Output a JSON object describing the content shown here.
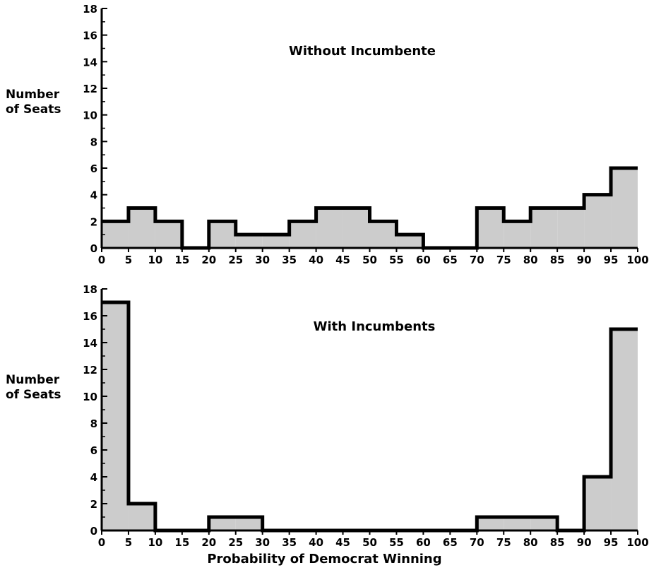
{
  "chart_data": [
    {
      "type": "bar",
      "title": "Without Incumbente",
      "ylabel": "Number of Seats",
      "xlabel": "",
      "x_tick_labels": [
        "0",
        "5",
        "10",
        "15",
        "20",
        "25",
        "30",
        "35",
        "40",
        "45",
        "50",
        "55",
        "60",
        "65",
        "70",
        "75",
        "80",
        "85",
        "90",
        "95",
        "100"
      ],
      "y_tick_labels": [
        "0",
        "2",
        "4",
        "6",
        "8",
        "10",
        "12",
        "14",
        "16",
        "18"
      ],
      "xlim": [
        0,
        100
      ],
      "ylim": [
        0,
        18
      ],
      "bin_width": 5,
      "categories": [
        "0-5",
        "5-10",
        "10-15",
        "15-20",
        "20-25",
        "25-30",
        "30-35",
        "35-40",
        "40-45",
        "45-50",
        "50-55",
        "55-60",
        "60-65",
        "65-70",
        "70-75",
        "75-80",
        "80-85",
        "85-90",
        "90-95",
        "95-100"
      ],
      "values": [
        2,
        3,
        2,
        0,
        2,
        1,
        1,
        2,
        3,
        3,
        2,
        1,
        0,
        0,
        3,
        2,
        3,
        3,
        4,
        6
      ],
      "fill": "#cccccc",
      "stroke": "#000000"
    },
    {
      "type": "bar",
      "title": "With Incumbents",
      "ylabel": "Number of Seats",
      "xlabel": "Probability of Democrat Winning",
      "x_tick_labels": [
        "0",
        "5",
        "10",
        "15",
        "20",
        "25",
        "30",
        "35",
        "40",
        "45",
        "50",
        "55",
        "60",
        "65",
        "70",
        "75",
        "80",
        "85",
        "90",
        "95",
        "100"
      ],
      "y_tick_labels": [
        "0",
        "2",
        "4",
        "6",
        "8",
        "10",
        "12",
        "14",
        "16",
        "18"
      ],
      "xlim": [
        0,
        100
      ],
      "ylim": [
        0,
        18
      ],
      "bin_width": 5,
      "categories": [
        "0-5",
        "5-10",
        "10-15",
        "15-20",
        "20-25",
        "25-30",
        "30-35",
        "35-40",
        "40-45",
        "45-50",
        "50-55",
        "55-60",
        "60-65",
        "65-70",
        "70-75",
        "75-80",
        "80-85",
        "85-90",
        "90-95",
        "95-100"
      ],
      "values": [
        17,
        2,
        0,
        0,
        1,
        1,
        0,
        0,
        0,
        0,
        0,
        0,
        0,
        0,
        1,
        1,
        1,
        0,
        4,
        15
      ],
      "fill": "#cccccc",
      "stroke": "#000000"
    }
  ],
  "labels": {
    "top_ylabel_line1": "Number",
    "top_ylabel_line2": "of Seats",
    "bottom_ylabel_line1": "Number",
    "bottom_ylabel_line2": "of Seats",
    "xlabel": "Probability of Democrat Winning"
  }
}
